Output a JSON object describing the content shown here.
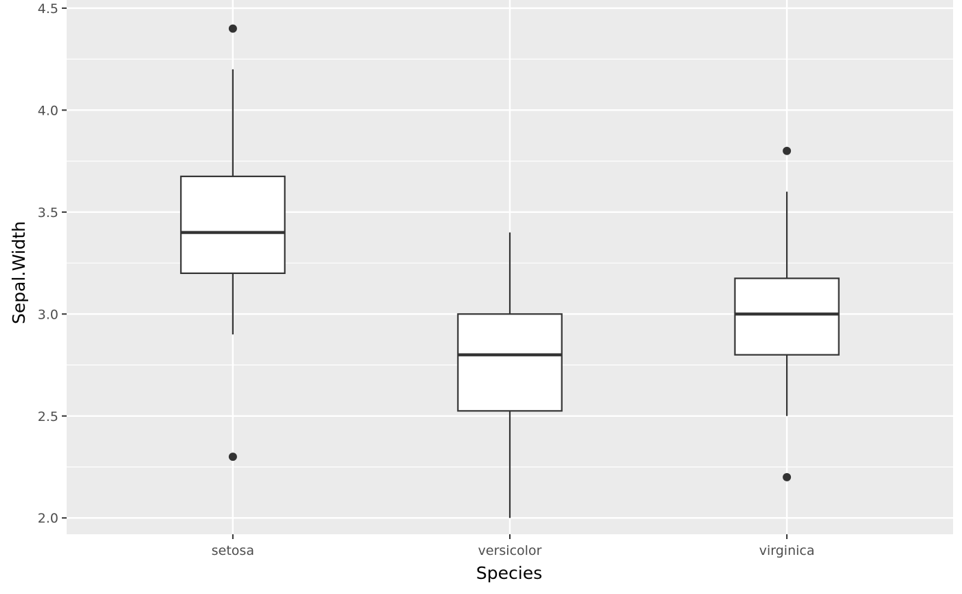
{
  "chart_data": {
    "type": "box",
    "title": "",
    "xlabel": "Species",
    "ylabel": "Sepal.Width",
    "categories": [
      "setosa",
      "versicolor",
      "virginica"
    ],
    "ylim": [
      1.92,
      4.54
    ],
    "y_ticks": [
      2.0,
      2.5,
      3.0,
      3.5,
      4.0,
      4.5
    ],
    "y_tick_labels": [
      "2.0",
      "2.5",
      "3.0",
      "3.5",
      "4.0",
      "4.5"
    ],
    "grid": true,
    "legend": "none",
    "boxes": [
      {
        "category": "setosa",
        "lower_whisker": 2.9,
        "q1": 3.2,
        "median": 3.4,
        "q3": 3.675,
        "upper_whisker": 4.2,
        "outliers": [
          4.4,
          2.3
        ]
      },
      {
        "category": "versicolor",
        "lower_whisker": 2.0,
        "q1": 2.525,
        "median": 2.8,
        "q3": 3.0,
        "upper_whisker": 3.4,
        "outliers": []
      },
      {
        "category": "virginica",
        "lower_whisker": 2.5,
        "q1": 2.8,
        "median": 3.0,
        "q3": 3.175,
        "upper_whisker": 3.6,
        "outliers": [
          3.8,
          2.2
        ]
      }
    ],
    "colors": {
      "panel_background": "#ebebeb",
      "grid": "#ffffff",
      "box_fill": "#ffffff",
      "box_stroke": "#333333",
      "tick": "#333333"
    }
  }
}
